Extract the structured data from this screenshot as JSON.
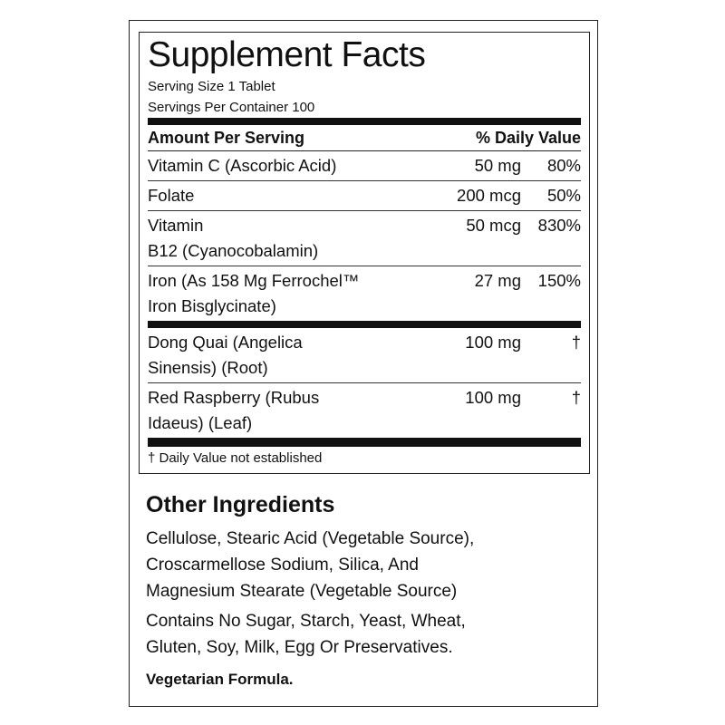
{
  "label": {
    "title": "Supplement Facts",
    "serving_size": "Serving Size 1 Tablet",
    "servings_per_container": "Servings Per Container 100",
    "header": {
      "amount": "Amount Per Serving",
      "daily_value": "% Daily Value"
    },
    "rows": [
      {
        "name": [
          "Vitamin C (Ascorbic Acid)"
        ],
        "amount": "50 mg",
        "dv": "80%"
      },
      {
        "name": [
          "Folate"
        ],
        "amount": "200 mcg",
        "dv": "50%"
      },
      {
        "name": [
          "Vitamin",
          "B12 (Cyanocobalamin)"
        ],
        "amount": "50 mcg",
        "dv": "830%"
      },
      {
        "name": [
          "Iron (As 158 Mg Ferrochel™",
          "Iron Bisglycinate)"
        ],
        "amount": "27 mg",
        "dv": "150%"
      }
    ],
    "other_rows": [
      {
        "name": [
          "Dong Quai (Angelica",
          "Sinensis) (Root)"
        ],
        "amount": "100 mg",
        "dv": "†"
      },
      {
        "name": [
          "Red Raspberry (Rubus",
          "Idaeus) (Leaf)"
        ],
        "amount": "100 mg",
        "dv": "†"
      }
    ],
    "footnote": "† Daily Value not established"
  },
  "other_ingredients": {
    "title": "Other Ingredients",
    "ingredients": [
      "Cellulose, Stearic Acid (Vegetable Source),",
      "Croscarmellose Sodium, Silica, And",
      "Magnesium Stearate (Vegetable Source)"
    ],
    "allergens": [
      "Contains No Sugar, Starch, Yeast, Wheat,",
      "Gluten, Soy, Milk, Egg Or Preservatives."
    ],
    "note": "Vegetarian Formula."
  }
}
